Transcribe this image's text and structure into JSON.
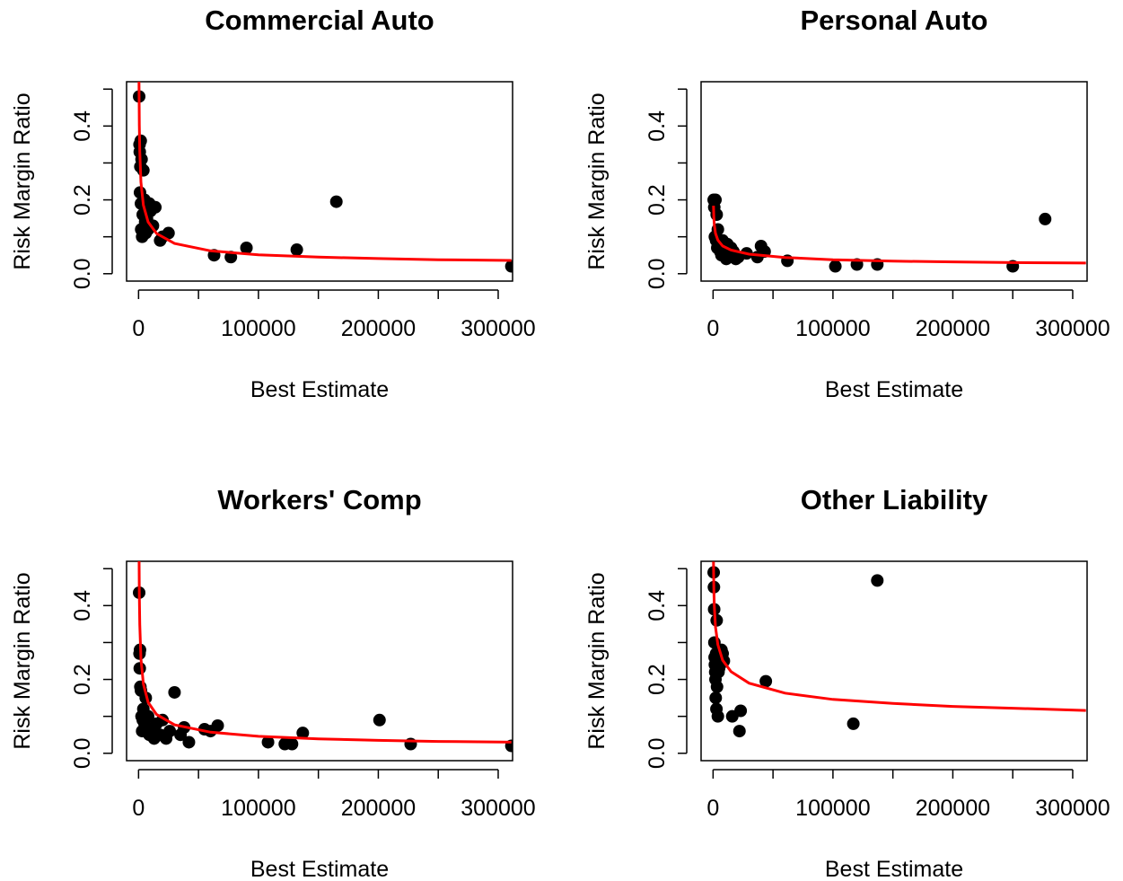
{
  "chart_data": [
    {
      "type": "scatter",
      "title": "Commercial Auto",
      "xlabel": "Best Estimate",
      "ylabel": "Risk Margin Ratio",
      "xlim": [
        -10000,
        312000
      ],
      "ylim": [
        -0.02,
        0.52
      ],
      "x_ticks": [
        0,
        100000,
        200000,
        300000
      ],
      "x_tick_labels": [
        "0",
        "100000",
        "200000",
        "300000"
      ],
      "y_ticks": [
        0.0,
        0.2,
        0.4
      ],
      "y_tick_labels": [
        "0.0",
        "0.2",
        "0.4"
      ],
      "grid": false,
      "series": [
        {
          "type": "scatter",
          "x": [
            500,
            800,
            1000,
            1200,
            1500,
            1800,
            2000,
            2200,
            2500,
            3000,
            3500,
            4000,
            5000,
            5500,
            6000,
            7000,
            8000,
            9000,
            10000,
            12000,
            14000,
            18000,
            20000,
            25000,
            63000,
            77000,
            90000,
            132000,
            165000,
            311000
          ],
          "y": [
            0.48,
            0.35,
            0.33,
            0.22,
            0.29,
            0.36,
            0.19,
            0.12,
            0.31,
            0.1,
            0.16,
            0.28,
            0.2,
            0.14,
            0.11,
            0.15,
            0.12,
            0.19,
            0.17,
            0.13,
            0.18,
            0.09,
            0.1,
            0.11,
            0.05,
            0.045,
            0.07,
            0.065,
            0.195,
            0.02
          ]
        },
        {
          "type": "line",
          "x": [
            300,
            600,
            1000,
            2000,
            4000,
            8000,
            15000,
            30000,
            60000,
            100000,
            150000,
            200000,
            250000,
            311000
          ],
          "y": [
            0.536,
            0.402,
            0.331,
            0.248,
            0.186,
            0.14,
            0.109,
            0.082,
            0.062,
            0.051,
            0.045,
            0.041,
            0.038,
            0.036
          ]
        }
      ]
    },
    {
      "type": "scatter",
      "title": "Personal Auto",
      "xlabel": "Best Estimate",
      "ylabel": "Risk Margin Ratio",
      "xlim": [
        -10000,
        312000
      ],
      "ylim": [
        -0.02,
        0.52
      ],
      "x_ticks": [
        0,
        100000,
        200000,
        300000
      ],
      "x_tick_labels": [
        "0",
        "100000",
        "200000",
        "300000"
      ],
      "y_ticks": [
        0.0,
        0.2,
        0.4
      ],
      "y_tick_labels": [
        "0.0",
        "0.2",
        "0.4"
      ],
      "grid": false,
      "series": [
        {
          "type": "scatter",
          "x": [
            500,
            1000,
            1500,
            2000,
            2500,
            3000,
            3500,
            4000,
            5000,
            6000,
            7000,
            8000,
            9000,
            10000,
            11000,
            12000,
            13000,
            14000,
            15000,
            17000,
            19000,
            21000,
            28000,
            37000,
            40000,
            43000,
            62000,
            102000,
            120000,
            137000,
            250000,
            277000
          ],
          "y": [
            0.2,
            0.18,
            0.1,
            0.2,
            0.09,
            0.16,
            0.07,
            0.12,
            0.08,
            0.06,
            0.05,
            0.09,
            0.05,
            0.07,
            0.04,
            0.08,
            0.06,
            0.05,
            0.07,
            0.06,
            0.04,
            0.045,
            0.055,
            0.045,
            0.075,
            0.06,
            0.035,
            0.02,
            0.025,
            0.025,
            0.02,
            0.148
          ]
        },
        {
          "type": "line",
          "x": [
            300,
            600,
            1000,
            2000,
            4000,
            8000,
            15000,
            30000,
            60000,
            100000,
            150000,
            200000,
            250000,
            311000
          ],
          "y": [
            0.184,
            0.152,
            0.133,
            0.11,
            0.091,
            0.075,
            0.064,
            0.053,
            0.044,
            0.038,
            0.034,
            0.032,
            0.03,
            0.029
          ]
        }
      ]
    },
    {
      "type": "scatter",
      "title": "Workers' Comp",
      "xlabel": "Best Estimate",
      "ylabel": "Risk Margin Ratio",
      "xlim": [
        -10000,
        312000
      ],
      "ylim": [
        -0.02,
        0.52
      ],
      "x_ticks": [
        0,
        100000,
        200000,
        300000
      ],
      "x_tick_labels": [
        "0",
        "100000",
        "200000",
        "300000"
      ],
      "y_ticks": [
        0.0,
        0.2,
        0.4
      ],
      "y_tick_labels": [
        "0.0",
        "0.2",
        "0.4"
      ],
      "grid": false,
      "series": [
        {
          "type": "scatter",
          "x": [
            500,
            800,
            1000,
            1200,
            1500,
            2000,
            2500,
            3000,
            3500,
            4000,
            5000,
            6000,
            7000,
            8000,
            9000,
            11000,
            13000,
            15000,
            18000,
            20000,
            23000,
            26000,
            30000,
            35000,
            38000,
            42000,
            55000,
            60000,
            66000,
            108000,
            122000,
            128000,
            137000,
            201000,
            227000,
            311000
          ],
          "y": [
            0.435,
            0.27,
            0.23,
            0.28,
            0.18,
            0.17,
            0.1,
            0.06,
            0.09,
            0.12,
            0.08,
            0.15,
            0.07,
            0.1,
            0.05,
            0.06,
            0.04,
            0.08,
            0.05,
            0.09,
            0.04,
            0.06,
            0.165,
            0.05,
            0.07,
            0.03,
            0.065,
            0.06,
            0.075,
            0.03,
            0.025,
            0.025,
            0.055,
            0.09,
            0.025,
            0.02
          ]
        },
        {
          "type": "line",
          "x": [
            300,
            600,
            1000,
            2000,
            4000,
            8000,
            15000,
            30000,
            60000,
            100000,
            150000,
            200000,
            250000,
            311000
          ],
          "y": [
            0.589,
            0.43,
            0.349,
            0.256,
            0.188,
            0.138,
            0.105,
            0.077,
            0.057,
            0.046,
            0.039,
            0.035,
            0.032,
            0.03
          ]
        }
      ]
    },
    {
      "type": "scatter",
      "title": "Other Liability",
      "xlabel": "Best Estimate",
      "ylabel": "Risk Margin Ratio",
      "xlim": [
        -10000,
        312000
      ],
      "ylim": [
        -0.02,
        0.52
      ],
      "x_ticks": [
        0,
        100000,
        200000,
        300000
      ],
      "x_tick_labels": [
        "0",
        "100000",
        "200000",
        "300000"
      ],
      "y_ticks": [
        0.0,
        0.2,
        0.4
      ],
      "y_tick_labels": [
        "0.0",
        "0.2",
        "0.4"
      ],
      "grid": false,
      "series": [
        {
          "type": "scatter",
          "x": [
            500,
            700,
            900,
            1100,
            1300,
            1500,
            1800,
            2000,
            2200,
            2500,
            2800,
            3000,
            3300,
            3600,
            4000,
            4500,
            5000,
            5500,
            6000,
            7000,
            8000,
            9000,
            16000,
            22000,
            23000,
            44000,
            117000,
            137000
          ],
          "y": [
            0.49,
            0.45,
            0.39,
            0.3,
            0.26,
            0.24,
            0.22,
            0.2,
            0.15,
            0.27,
            0.12,
            0.36,
            0.18,
            0.25,
            0.1,
            0.22,
            0.23,
            0.26,
            0.24,
            0.28,
            0.27,
            0.25,
            0.1,
            0.06,
            0.115,
            0.195,
            0.08,
            0.468
          ]
        },
        {
          "type": "line",
          "x": [
            300,
            600,
            1000,
            2000,
            4000,
            8000,
            15000,
            30000,
            60000,
            100000,
            150000,
            200000,
            250000,
            311000
          ],
          "y": [
            0.519,
            0.445,
            0.4,
            0.343,
            0.294,
            0.252,
            0.221,
            0.19,
            0.163,
            0.146,
            0.135,
            0.127,
            0.122,
            0.116
          ]
        }
      ]
    }
  ],
  "colors": {
    "points": "#000000",
    "fit_line": "#ff0000",
    "axes": "#000000",
    "background": "#ffffff"
  }
}
